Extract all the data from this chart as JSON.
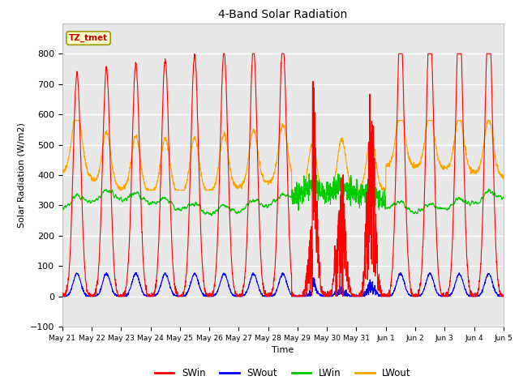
{
  "title": "4-Band Solar Radiation",
  "xlabel": "Time",
  "ylabel": "Solar Radiation (W/m2)",
  "ylim": [
    -100,
    900
  ],
  "yticks": [
    -100,
    0,
    100,
    200,
    300,
    400,
    500,
    600,
    700,
    800
  ],
  "background_color": "#ffffff",
  "plot_bg_color": "#e8e8e8",
  "legend_label": "TZ_tmet",
  "series": {
    "SWin": {
      "color": "#ff0000",
      "label": "SWin"
    },
    "SWout": {
      "color": "#0000ff",
      "label": "SWout"
    },
    "LWin": {
      "color": "#00cc00",
      "label": "LWin"
    },
    "LWout": {
      "color": "#ffa500",
      "label": "LWout"
    }
  },
  "x_tick_labels": [
    "May 21",
    "May 22",
    "May 23",
    "May 24",
    "May 25",
    "May 26",
    "May 27",
    "May 28",
    "May 29",
    "May 30",
    "May 31",
    "Jun 1",
    "Jun 2",
    "Jun 3",
    "Jun 4",
    "Jun 5"
  ],
  "num_days": 15,
  "pts_per_day": 144
}
